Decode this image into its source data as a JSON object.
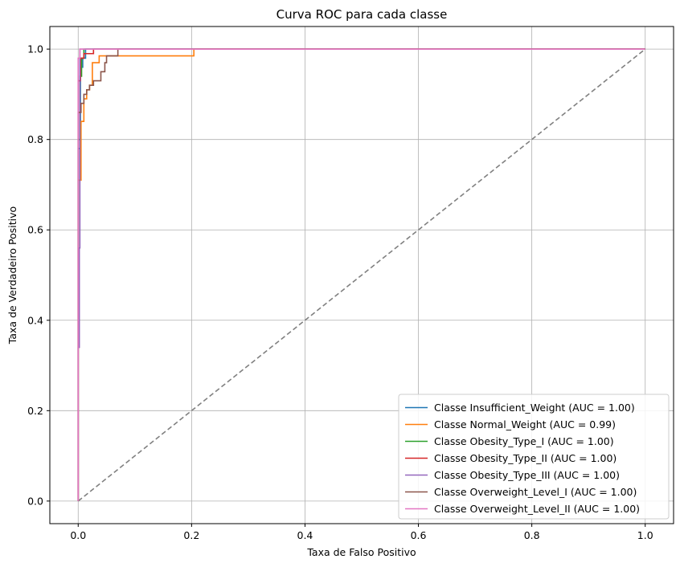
{
  "chart_data": {
    "type": "line",
    "title": "Curva ROC para cada classe",
    "xlabel": "Taxa de Falso Positivo",
    "ylabel": "Taxa de Verdadeiro Positivo",
    "xlim": [
      -0.05,
      1.05
    ],
    "ylim": [
      -0.05,
      1.05
    ],
    "xticks": [
      0.0,
      0.2,
      0.4,
      0.6,
      0.8,
      1.0
    ],
    "yticks": [
      0.0,
      0.2,
      0.4,
      0.6,
      0.8,
      1.0
    ],
    "grid": true,
    "legend_position": "lower-right",
    "diagonal": {
      "x": [
        0,
        1
      ],
      "y": [
        0,
        1
      ],
      "color": "#808080",
      "style": "dashed"
    },
    "series": [
      {
        "name": "Classe Insufficient_Weight (AUC = 1.00)",
        "color": "#1f77b4",
        "x": [
          0,
          0,
          0.004,
          0.004,
          0.008,
          0.008,
          0.013,
          0.013,
          1.0
        ],
        "y": [
          0,
          0.78,
          0.78,
          0.96,
          0.96,
          0.98,
          0.98,
          1.0,
          1.0
        ]
      },
      {
        "name": "Classe Normal_Weight (AUC = 0.99)",
        "color": "#ff7f0e",
        "x": [
          0,
          0,
          0.005,
          0.005,
          0.01,
          0.01,
          0.015,
          0.015,
          0.02,
          0.02,
          0.025,
          0.025,
          0.037,
          0.037,
          0.204,
          0.204,
          1.0
        ],
        "y": [
          0,
          0.71,
          0.71,
          0.84,
          0.84,
          0.89,
          0.89,
          0.91,
          0.91,
          0.92,
          0.92,
          0.97,
          0.97,
          0.985,
          0.985,
          1.0,
          1.0
        ]
      },
      {
        "name": "Classe Obesity_Type_I (AUC = 1.00)",
        "color": "#2ca02c",
        "x": [
          0,
          0,
          0.003,
          0.003,
          0.006,
          0.006,
          0.01,
          0.01,
          1.0
        ],
        "y": [
          0,
          0.8,
          0.8,
          0.94,
          0.94,
          0.98,
          0.98,
          1.0,
          1.0
        ]
      },
      {
        "name": "Classe Obesity_Type_II (AUC = 1.00)",
        "color": "#d62728",
        "x": [
          0,
          0,
          0.004,
          0.004,
          0.01,
          0.01,
          0.027,
          0.027,
          1.0
        ],
        "y": [
          0,
          0.93,
          0.93,
          0.98,
          0.98,
          0.99,
          0.99,
          1.0,
          1.0
        ]
      },
      {
        "name": "Classe Obesity_Type_III (AUC = 1.00)",
        "color": "#9467bd",
        "x": [
          0,
          0,
          0.002,
          0.002,
          0.003,
          0.003,
          1.0
        ],
        "y": [
          0,
          0.34,
          0.34,
          0.56,
          0.56,
          1.0,
          1.0
        ]
      },
      {
        "name": "Classe Overweight_Level_I (AUC = 1.00)",
        "color": "#8c564b",
        "x": [
          0,
          0,
          0.005,
          0.005,
          0.01,
          0.01,
          0.015,
          0.015,
          0.02,
          0.02,
          0.027,
          0.027,
          0.04,
          0.04,
          0.047,
          0.047,
          0.05,
          0.05,
          0.07,
          0.07,
          1.0
        ],
        "y": [
          0,
          0.86,
          0.86,
          0.88,
          0.88,
          0.9,
          0.9,
          0.91,
          0.91,
          0.92,
          0.92,
          0.93,
          0.93,
          0.95,
          0.95,
          0.97,
          0.97,
          0.985,
          0.985,
          1.0,
          1.0
        ]
      },
      {
        "name": "Classe Overweight_Level_II (AUC = 1.00)",
        "color": "#e377c2",
        "x": [
          0,
          0,
          0.003,
          0.003,
          1.0
        ],
        "y": [
          0,
          0.98,
          0.98,
          1.0,
          1.0
        ]
      }
    ]
  }
}
